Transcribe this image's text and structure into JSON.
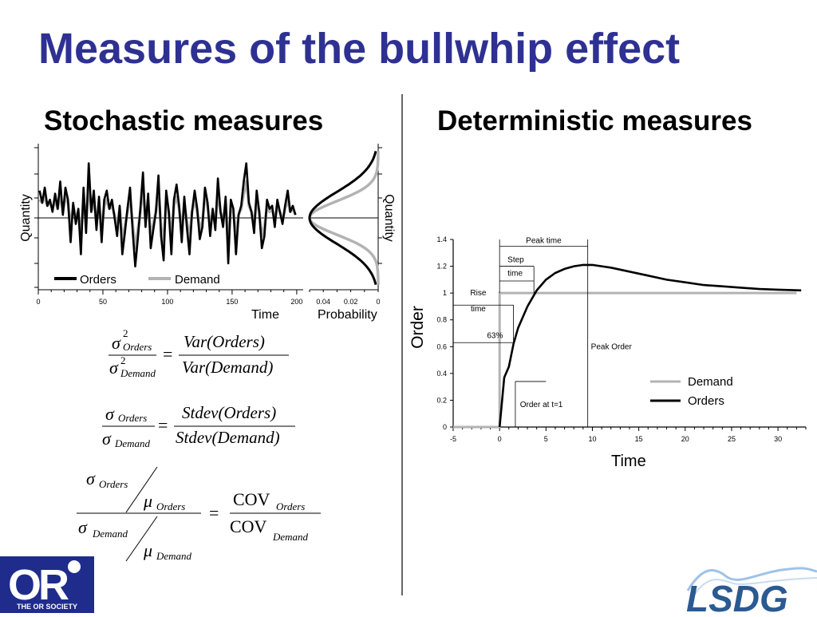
{
  "title": "Measures of the bullwhip effect",
  "left_heading": "Stochastic measures",
  "right_heading": "Deterministic measures",
  "logos": {
    "left_caption": "THE OR SOCIETY",
    "left_mark": "OR",
    "right_text": "LSDG"
  },
  "colors": {
    "title": "#2e3192",
    "orders": "#000000",
    "demand": "#b3b3b3",
    "logo_blue": "#1f2c8c"
  },
  "formulas": {
    "variance_ratio": {
      "lhs_num": "σ",
      "lhs_num_sub": "Orders",
      "lhs_den": "σ",
      "lhs_den_sub": "Demand",
      "sup": "2",
      "rhs_num": "Var(Orders)",
      "rhs_den": "Var(Demand)"
    },
    "stdev_ratio": {
      "lhs_num": "σ",
      "lhs_num_sub": "Orders",
      "lhs_den": "σ",
      "lhs_den_sub": "Demand",
      "rhs_num": "Stdev(Orders)",
      "rhs_den": "Stdev(Demand)"
    },
    "cov_ratio": {
      "sigma": "σ",
      "mu": "μ",
      "orders": "Orders",
      "demand": "Demand",
      "cov": "COV"
    }
  },
  "chart_data": [
    {
      "type": "line",
      "xlabel": "Time",
      "ylabel": "Quantity",
      "xlim": [
        0,
        205
      ],
      "xticks": [
        0,
        50,
        100,
        150,
        200
      ],
      "legend": {
        "placement": "bottom-left",
        "entries": [
          "Orders",
          "Demand"
        ]
      },
      "series": [
        {
          "name": "Orders",
          "x": [
            1,
            3,
            5,
            7,
            9,
            11,
            13,
            15,
            17,
            19,
            21,
            23,
            25,
            27,
            29,
            31,
            33,
            35,
            37,
            39,
            41,
            43,
            45,
            47,
            49,
            51,
            53,
            55,
            57,
            59,
            61,
            63,
            65,
            67,
            69,
            71,
            73,
            75,
            77,
            79,
            81,
            83,
            85,
            87,
            89,
            91,
            93,
            95,
            97,
            99,
            101,
            103,
            105,
            107,
            109,
            111,
            113,
            115,
            117,
            119,
            121,
            123,
            125,
            127,
            129,
            131,
            133,
            135,
            137,
            139,
            141,
            143,
            145,
            147,
            149,
            151,
            153,
            155,
            157,
            159,
            161,
            163,
            165,
            167,
            169,
            171,
            173,
            175,
            177,
            179,
            181,
            183,
            185,
            187,
            189,
            191,
            193,
            195,
            197,
            199
          ],
          "values": [
            0.9,
            0.5,
            1.0,
            0.4,
            0.6,
            0.2,
            0.8,
            0.3,
            1.2,
            0.1,
            1.0,
            0.6,
            -0.8,
            0.5,
            -0.2,
            0.3,
            -1.2,
            1.0,
            -0.5,
            1.8,
            0.2,
            0.9,
            -0.4,
            0.7,
            -0.8,
            0.6,
            0.9,
            0.3,
            0.6,
            0.0,
            -0.6,
            0.4,
            -1.2,
            -0.5,
            0.3,
            1.0,
            -0.4,
            -1.6,
            -0.7,
            0.3,
            1.5,
            -0.3,
            0.8,
            -1.0,
            -0.4,
            0.2,
            1.4,
            -0.6,
            -1.4,
            0.9,
            0.2,
            -1.2,
            0.6,
            1.1,
            0.4,
            -0.8,
            0.7,
            -0.3,
            -1.2,
            0.2,
            0.9,
            0.3,
            -0.7,
            -0.3,
            1.0,
            0.5,
            -0.6,
            0.3,
            -0.4,
            1.3,
            0.2,
            -0.3,
            0.7,
            -1.5,
            0.6,
            0.3,
            -1.2,
            0.1,
            0.4,
            1.2,
            1.8,
            0.5,
            0.2,
            -0.5,
            0.9,
            0.2,
            -1.0,
            -0.6,
            0.6,
            0.3,
            0.4,
            -0.3,
            0.6,
            0.2,
            -0.2,
            0.4,
            0.9,
            0.2,
            0.4,
            0.1
          ]
        },
        {
          "name": "Demand",
          "x": [
            1,
            3,
            5,
            7,
            9,
            11,
            13,
            15,
            17,
            19,
            21,
            23,
            25,
            27,
            29,
            31,
            33,
            35,
            37,
            39,
            41,
            43,
            45,
            47,
            49,
            51,
            53,
            55,
            57,
            59,
            61,
            63,
            65,
            67,
            69,
            71,
            73,
            75,
            77,
            79,
            81,
            83,
            85,
            87,
            89,
            91,
            93,
            95,
            97,
            99,
            101,
            103,
            105,
            107,
            109,
            111,
            113,
            115,
            117,
            119,
            121,
            123,
            125,
            127,
            129,
            131,
            133,
            135,
            137,
            139,
            141,
            143,
            145,
            147,
            149,
            151,
            153,
            155,
            157,
            159,
            161,
            163,
            165,
            167,
            169,
            171,
            173,
            175,
            177,
            179,
            181,
            183,
            185,
            187,
            189,
            191,
            193,
            195,
            197,
            199
          ],
          "values": [
            0.6,
            0.5,
            0.7,
            0.4,
            0.5,
            0.3,
            0.6,
            0.3,
            0.8,
            0.2,
            0.7,
            0.5,
            -0.3,
            0.4,
            0.0,
            0.2,
            -0.6,
            0.7,
            -0.2,
            1.2,
            0.2,
            0.6,
            -0.2,
            0.5,
            -0.4,
            0.4,
            0.6,
            0.3,
            0.4,
            0.1,
            -0.3,
            0.3,
            -0.7,
            -0.3,
            0.2,
            0.7,
            -0.2,
            -1.0,
            -0.4,
            0.2,
            1.0,
            -0.1,
            0.5,
            -0.6,
            -0.2,
            0.2,
            0.9,
            -0.3,
            -0.8,
            0.6,
            0.2,
            -0.7,
            0.4,
            0.7,
            0.3,
            -0.4,
            0.5,
            -0.1,
            -0.7,
            0.2,
            0.6,
            0.2,
            -0.4,
            -0.1,
            0.7,
            0.4,
            -0.3,
            0.2,
            -0.2,
            0.9,
            0.2,
            -0.1,
            0.5,
            -0.9,
            0.4,
            0.2,
            -0.7,
            0.1,
            0.3,
            0.8,
            1.2,
            0.4,
            0.2,
            -0.2,
            0.6,
            0.2,
            -0.6,
            -0.3,
            0.4,
            0.2,
            0.3,
            -0.1,
            0.4,
            0.2,
            -0.1,
            0.3,
            0.6,
            0.2,
            0.3,
            0.1
          ]
        }
      ]
    },
    {
      "type": "line",
      "xlabel": "Probability",
      "ylabel": "Quantity",
      "xlim": [
        0.05,
        0
      ],
      "xticks": [
        0.04,
        0.02,
        0
      ],
      "series": [
        {
          "name": "Orders",
          "sigma": 0.85,
          "peak": 0.05
        },
        {
          "name": "Demand",
          "sigma": 0.55,
          "peak": 0.05
        }
      ]
    },
    {
      "type": "line",
      "xlabel": "Time",
      "ylabel": "Order",
      "xlim": [
        -5,
        33
      ],
      "ylim": [
        0,
        1.4
      ],
      "xticks": [
        -5,
        0,
        5,
        10,
        15,
        20,
        25,
        30
      ],
      "yticks": [
        0,
        0.2,
        0.4,
        0.6,
        0.8,
        1,
        1.2,
        1.4
      ],
      "legend": {
        "placement": "bottom-right",
        "entries": [
          "Demand",
          "Orders"
        ]
      },
      "series": [
        {
          "name": "Demand",
          "x": [
            -5,
            0,
            0,
            32
          ],
          "values": [
            0,
            0,
            1,
            1
          ]
        },
        {
          "name": "Orders",
          "x": [
            0,
            0.5,
            1,
            1.5,
            2,
            3,
            4,
            5,
            6,
            7,
            8,
            9,
            9.5,
            10,
            12,
            14,
            16,
            18,
            20,
            22,
            24,
            26,
            28,
            30,
            32.5
          ],
          "values": [
            0,
            0.37,
            0.45,
            0.62,
            0.74,
            0.9,
            1.02,
            1.1,
            1.15,
            1.18,
            1.2,
            1.21,
            1.21,
            1.21,
            1.19,
            1.16,
            1.13,
            1.1,
            1.08,
            1.06,
            1.05,
            1.04,
            1.03,
            1.025,
            1.02
          ]
        }
      ],
      "annotations": [
        "Peak time",
        "Step time",
        "Rise time",
        "63%",
        "Peak Order",
        "Order at t=1"
      ]
    }
  ]
}
